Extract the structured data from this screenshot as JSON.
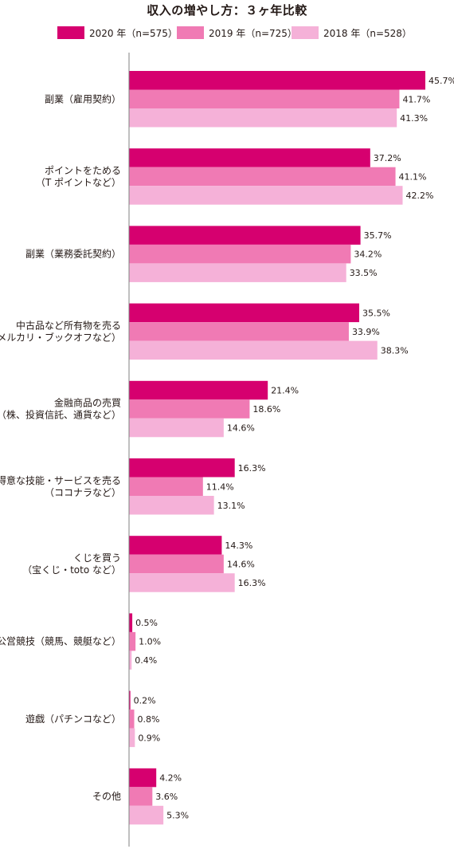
{
  "chart_data": {
    "type": "bar",
    "orientation": "horizontal",
    "title": "収入の増やし方：３ヶ年比較",
    "xlabel": "",
    "ylabel": "",
    "xlim": [
      0,
      46
    ],
    "grid": false,
    "legend_position": "top",
    "categories": [
      [
        "副業（雇用契約）"
      ],
      [
        "ポイントをためる",
        "（T ポイントなど）"
      ],
      [
        "副業（業務委託契約）"
      ],
      [
        "中古品など所有物を売る",
        "（メルカリ・ブックオフなど）"
      ],
      [
        "金融商品の売買",
        "（株、投資信託、通貨など）"
      ],
      [
        "得意な技能・サービスを売る",
        "（ココナラなど）"
      ],
      [
        "くじを買う",
        "（宝くじ・toto など）"
      ],
      [
        "公営競技（競馬、競艇など）"
      ],
      [
        "遊戯（パチンコなど）"
      ],
      [
        "その他"
      ]
    ],
    "series": [
      {
        "name": "2020 年（n=575）",
        "color": "#d6006f",
        "values": [
          45.7,
          37.2,
          35.7,
          35.5,
          21.4,
          16.3,
          14.3,
          0.5,
          0.2,
          4.2
        ],
        "labels": [
          "45.7%",
          "37.2%",
          "35.7%",
          "35.5%",
          "21.4%",
          "16.3%",
          "14.3%",
          "0.5%",
          "0.2%",
          "4.2%"
        ]
      },
      {
        "name": "2019 年（n=725）",
        "color": "#f07ab4",
        "values": [
          41.7,
          41.1,
          34.2,
          33.9,
          18.6,
          11.4,
          14.6,
          1.0,
          0.8,
          3.6
        ],
        "labels": [
          "41.7%",
          "41.1%",
          "34.2%",
          "33.9%",
          "18.6%",
          "11.4%",
          "14.6%",
          "1.0%",
          "0.8%",
          "3.6%"
        ]
      },
      {
        "name": "2018 年（n=528）",
        "color": "#f5b1d8",
        "values": [
          41.3,
          42.2,
          33.5,
          38.3,
          14.6,
          13.1,
          16.3,
          0.4,
          0.9,
          5.3
        ],
        "labels": [
          "41.3%",
          "42.2%",
          "33.5%",
          "38.3%",
          "14.6%",
          "13.1%",
          "16.3%",
          "0.4%",
          "0.9%",
          "5.3%"
        ]
      }
    ]
  }
}
